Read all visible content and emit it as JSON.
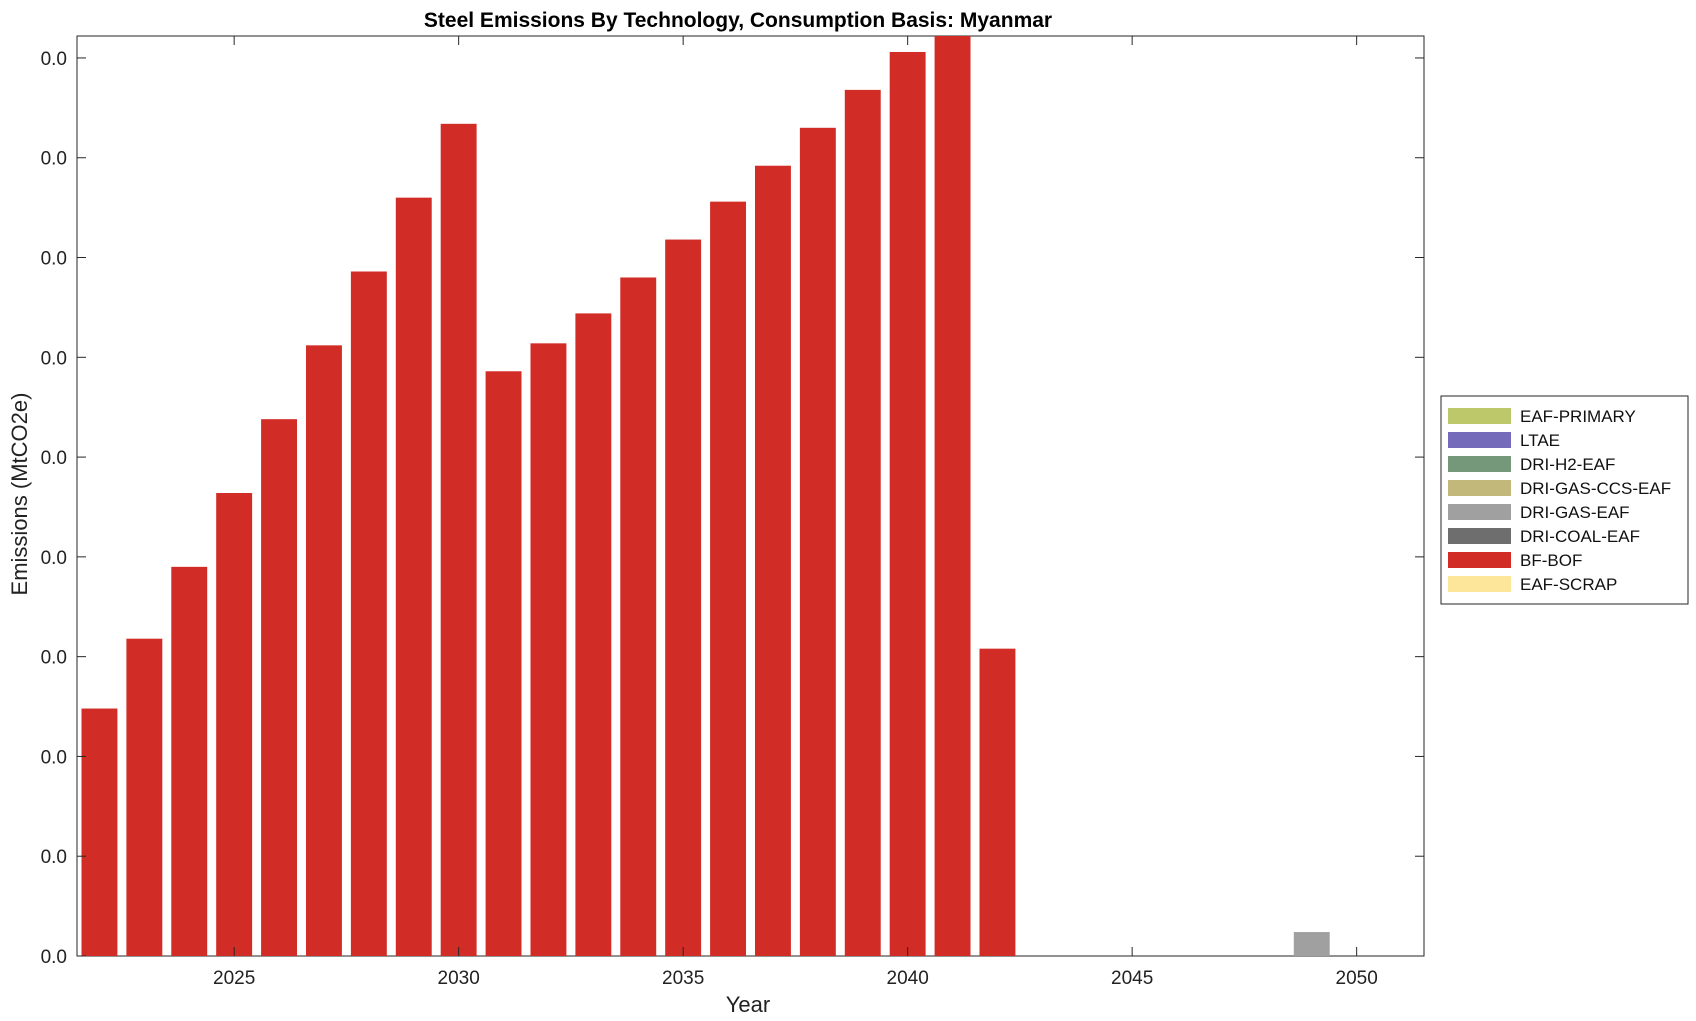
{
  "chart_data": {
    "type": "bar",
    "stacked": true,
    "title": "Steel Emissions By Technology, Consumption Basis: Myanmar",
    "xlabel": "Year",
    "ylabel": "Emissions (MtCO2e)",
    "xlim": [
      2021.5,
      2051.5
    ],
    "ylim": [
      0,
      0.0461
    ],
    "x_ticks": [
      2025,
      2030,
      2035,
      2040,
      2045,
      2050
    ],
    "y_ticks": [
      0,
      0.005,
      0.01,
      0.015,
      0.02,
      0.025,
      0.03,
      0.035,
      0.04,
      0.045
    ],
    "y_tick_labels": [
      "0.0",
      "0.0",
      "0.0",
      "0.0",
      "0.0",
      "0.0",
      "0.0",
      "0.0",
      "0.0",
      "0.0"
    ],
    "grid": false,
    "legend_position": "outside-right",
    "x": [
      2022,
      2023,
      2024,
      2025,
      2026,
      2027,
      2028,
      2029,
      2030,
      2031,
      2032,
      2033,
      2034,
      2035,
      2036,
      2037,
      2038,
      2039,
      2040,
      2041,
      2042,
      2043,
      2044,
      2045,
      2046,
      2047,
      2048,
      2049,
      2050
    ],
    "series": [
      {
        "name": "EAF-SCRAP",
        "color": "#fde699",
        "values": [
          0,
          0,
          0,
          0,
          0,
          0,
          0,
          0,
          0,
          0,
          0,
          0,
          0,
          0,
          0,
          0,
          0,
          0,
          0,
          0,
          0,
          0,
          0,
          0,
          0,
          0,
          0,
          0,
          0
        ]
      },
      {
        "name": "BF-BOF",
        "color": "#d22c26",
        "values": [
          0.0124,
          0.0159,
          0.0195,
          0.0232,
          0.0269,
          0.0306,
          0.0343,
          0.038,
          0.0417,
          0.0293,
          0.0307,
          0.0322,
          0.034,
          0.0359,
          0.0378,
          0.0396,
          0.0415,
          0.0434,
          0.0453,
          0.0461,
          0.0154,
          0,
          0,
          0,
          0,
          0,
          0,
          0,
          0
        ]
      },
      {
        "name": "DRI-COAL-EAF",
        "color": "#6e6e6e",
        "values": [
          0,
          0,
          0,
          0,
          0,
          0,
          0,
          0,
          0,
          0,
          0,
          0,
          0,
          0,
          0,
          0,
          0,
          0,
          0,
          0,
          0,
          0,
          0,
          0,
          0,
          0,
          0,
          0,
          0
        ]
      },
      {
        "name": "DRI-GAS-EAF",
        "color": "#a0a0a0",
        "values": [
          0,
          0,
          0,
          0,
          0,
          0,
          0,
          0,
          0,
          0,
          0,
          0,
          0,
          0,
          0,
          0,
          0,
          0,
          0,
          0,
          0,
          0,
          0,
          0,
          0,
          0,
          0,
          0.0012,
          0
        ]
      },
      {
        "name": "DRI-GAS-CCS-EAF",
        "color": "#c2b87a",
        "values": [
          0,
          0,
          0,
          0,
          0,
          0,
          0,
          0,
          0,
          0,
          0,
          0,
          0,
          0,
          0,
          0,
          0,
          0,
          0,
          0,
          0,
          0,
          0,
          0,
          0,
          0,
          0,
          0,
          0
        ]
      },
      {
        "name": "DRI-H2-EAF",
        "color": "#76987a",
        "values": [
          0,
          0,
          0,
          0,
          0,
          0,
          0,
          0,
          0,
          0,
          0,
          0,
          0,
          0,
          0,
          0,
          0,
          0,
          0,
          0,
          0,
          0,
          0,
          0,
          0,
          0,
          0,
          0,
          0
        ]
      },
      {
        "name": "LTAE",
        "color": "#746cbb",
        "values": [
          0,
          0,
          0,
          0,
          0,
          0,
          0,
          0,
          0,
          0,
          0,
          0,
          0,
          0,
          0,
          0,
          0,
          0,
          0,
          0,
          0,
          0,
          0,
          0,
          0,
          0,
          0,
          0,
          0
        ]
      },
      {
        "name": "EAF-PRIMARY",
        "color": "#bcc86a",
        "values": [
          0,
          0,
          0,
          0,
          0,
          0,
          0,
          0,
          0,
          0,
          0,
          0,
          0,
          0,
          0,
          0,
          0,
          0,
          0,
          0,
          0,
          0,
          0,
          0,
          0,
          0,
          0,
          0,
          0
        ]
      }
    ],
    "legend_order": [
      "EAF-PRIMARY",
      "LTAE",
      "DRI-H2-EAF",
      "DRI-GAS-CCS-EAF",
      "DRI-GAS-EAF",
      "DRI-COAL-EAF",
      "BF-BOF",
      "EAF-SCRAP"
    ]
  }
}
